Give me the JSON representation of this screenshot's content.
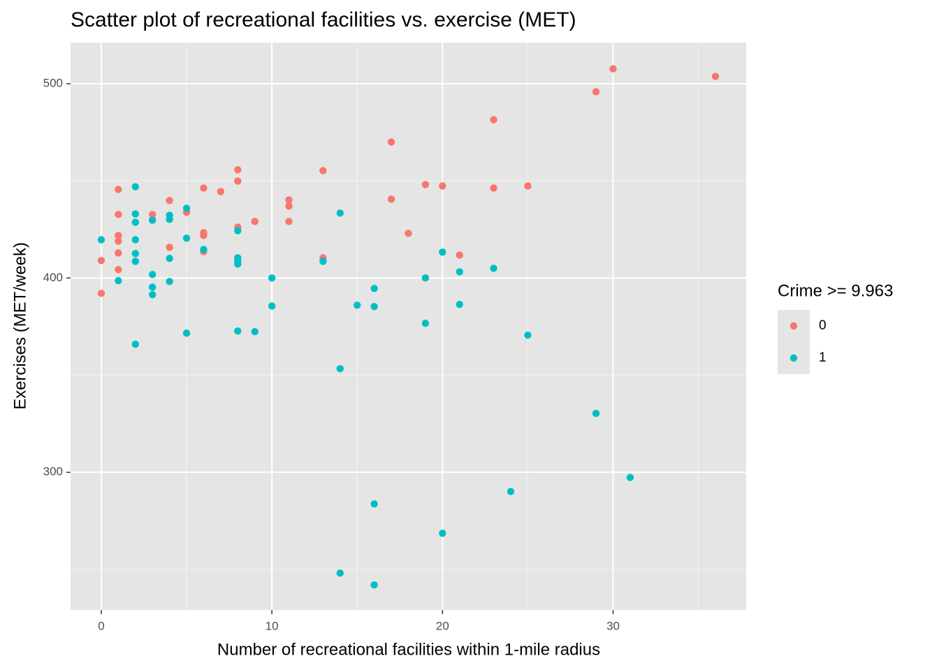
{
  "chart_data": {
    "type": "scatter",
    "title": "Scatter plot of recreational facilities vs. exercise (MET)",
    "x_label": "Number of recreational facilities within 1-mile radius",
    "y_label": "Exercises (MET/week)",
    "legend_title": "Crime >= 9.963",
    "legend_position": "right",
    "grid": true,
    "xlim": [
      -1.8,
      37.8
    ],
    "xticks": [
      0,
      10,
      20,
      30
    ],
    "xminor": [
      5,
      15,
      25,
      35
    ],
    "ylim": [
      229.1,
      521.2
    ],
    "yticks": [
      300,
      400,
      500
    ],
    "yminor": [
      250,
      350,
      450
    ],
    "series": [
      {
        "name": "0",
        "color": "#F8766D",
        "x": [
          0,
          0,
          1,
          1,
          1,
          1,
          1,
          1,
          3,
          3,
          4,
          4,
          5,
          6,
          6,
          6,
          6,
          7,
          8,
          8,
          8,
          9,
          11,
          11,
          11,
          13,
          13,
          17,
          17,
          18,
          19,
          20,
          21,
          23,
          23,
          25,
          29,
          30,
          36
        ],
        "y": [
          409.0,
          392.1,
          445.6,
          432.7,
          421.9,
          419.0,
          412.9,
          404.3,
          432.7,
          429.8,
          439.9,
          415.8,
          433.8,
          446.3,
          423.3,
          421.9,
          413.6,
          444.5,
          455.7,
          449.9,
          426.2,
          429.1,
          440.2,
          437.0,
          429.1,
          455.3,
          410.4,
          470.0,
          440.6,
          423.0,
          448.1,
          447.4,
          411.8,
          481.5,
          446.3,
          447.4,
          495.9,
          507.7,
          503.8
        ]
      },
      {
        "name": "1",
        "color": "#00BFC4",
        "x": [
          0,
          1,
          2,
          2,
          2,
          2,
          2,
          2,
          2,
          3,
          3,
          3,
          3,
          4,
          4,
          4,
          4,
          5,
          5,
          5,
          6,
          8,
          8,
          8,
          8,
          8,
          9,
          10,
          10,
          13,
          14,
          14,
          14,
          15,
          16,
          16,
          16,
          16,
          19,
          19,
          20,
          20,
          21,
          21,
          23,
          24,
          25,
          29,
          31
        ],
        "y": [
          419.7,
          398.6,
          447.0,
          433.0,
          428.7,
          419.7,
          412.6,
          408.6,
          365.9,
          429.8,
          401.8,
          395.3,
          391.4,
          432.3,
          430.2,
          410.1,
          398.2,
          435.9,
          420.5,
          371.6,
          414.7,
          424.4,
          410.4,
          409.0,
          407.2,
          372.7,
          372.4,
          400,
          385.6,
          408.6,
          433.4,
          353.3,
          248.1,
          386.0,
          394.6,
          385.3,
          283.7,
          242.0,
          400,
          376.7,
          413.3,
          268.6,
          403.2,
          386.4,
          405.0,
          290.1,
          370.6,
          330.3,
          297.3
        ]
      }
    ]
  }
}
